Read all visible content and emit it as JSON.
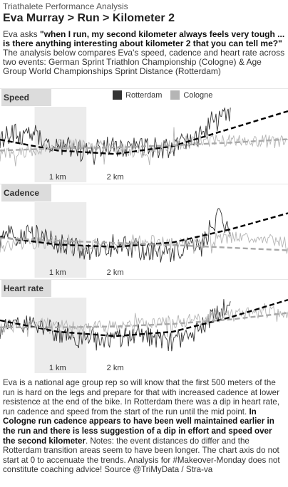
{
  "header": {
    "subtitle": "Triathalete Performance Analysis",
    "title": "Eva Murray > Run > Kilometer 2",
    "intro_lead": "Eva asks ",
    "intro_quote": "\"when I run, my second kilometer always feels very tough ... is there anything interesting about kilometer 2 that you can tell me?\"",
    "intro_rest": "The analysis below compares Eva's speed, cadence and heart rate across two events: German Sprint Triathlon Championship (Cologne) & Age Group World Championships Sprint Distance (Rotterdam)"
  },
  "legend": {
    "rotterdam": "Rotterdam",
    "cologne": "Cologne"
  },
  "colors": {
    "rotterdam": "#333333",
    "cologne": "#b5b5b5",
    "highlight": "#ececec",
    "label_bg": "#dcdcdc"
  },
  "chart_data": [
    {
      "type": "line",
      "title": "Speed",
      "x_unit": "km",
      "xlim": [
        0,
        5
      ],
      "x_ticks": [
        1,
        2
      ],
      "x_tick_labels": [
        "1 km",
        "2 km"
      ],
      "highlight_range": [
        0.6,
        1.5
      ],
      "series": [
        {
          "name": "Rotterdam",
          "x": [
            0.0,
            0.5,
            1.0,
            1.5,
            2.0,
            2.5,
            3.0,
            3.5,
            4.0
          ],
          "y": [
            0.7,
            0.8,
            0.55,
            0.4,
            0.5,
            0.5,
            0.45,
            0.8,
            1.25
          ]
        },
        {
          "name": "Cologne",
          "x": [
            0.0,
            0.5,
            1.0,
            1.5,
            2.0,
            2.5,
            3.0,
            3.5,
            4.0,
            4.5,
            5.0
          ],
          "y": [
            0.3,
            0.4,
            0.55,
            0.5,
            0.45,
            0.35,
            0.5,
            0.6,
            0.65,
            0.6,
            0.6
          ]
        }
      ],
      "trends": [
        {
          "name": "Rotterdam",
          "points": [
            [
              0.0,
              0.65
            ],
            [
              1.0,
              0.4
            ],
            [
              2.0,
              0.32
            ],
            [
              3.0,
              0.5
            ],
            [
              4.0,
              0.9
            ],
            [
              5.0,
              1.3
            ]
          ]
        },
        {
          "name": "Cologne",
          "points": [
            [
              0.0,
              0.4
            ],
            [
              1.0,
              0.45
            ],
            [
              2.0,
              0.47
            ],
            [
              3.0,
              0.52
            ],
            [
              4.0,
              0.58
            ],
            [
              5.0,
              0.66
            ]
          ]
        }
      ],
      "ylim": [
        0,
        1.4
      ]
    },
    {
      "type": "line",
      "title": "Cadence",
      "x_unit": "km",
      "xlim": [
        0,
        5
      ],
      "x_ticks": [
        1,
        2
      ],
      "x_tick_labels": [
        "1 km",
        "2 km"
      ],
      "highlight_range": [
        0.6,
        1.5
      ],
      "series": [
        {
          "name": "Rotterdam",
          "x": [
            0.0,
            0.5,
            1.0,
            1.5,
            2.0,
            2.5,
            3.0,
            3.5,
            3.8,
            4.0
          ],
          "y": [
            0.6,
            0.7,
            0.45,
            0.3,
            0.4,
            0.3,
            0.25,
            0.4,
            1.2,
            0.7
          ]
        },
        {
          "name": "Cologne",
          "x": [
            0.0,
            0.5,
            1.0,
            1.5,
            2.0,
            2.5,
            3.0,
            3.5,
            4.0,
            4.5,
            5.0
          ],
          "y": [
            0.4,
            0.45,
            0.5,
            0.4,
            0.45,
            0.55,
            0.45,
            0.5,
            0.6,
            0.55,
            0.5
          ]
        }
      ],
      "trends": [
        {
          "name": "Rotterdam",
          "points": [
            [
              0.0,
              0.6
            ],
            [
              1.0,
              0.43
            ],
            [
              2.0,
              0.38
            ],
            [
              3.0,
              0.48
            ],
            [
              4.0,
              0.78
            ],
            [
              5.0,
              1.15
            ]
          ]
        },
        {
          "name": "Cologne",
          "points": [
            [
              0.0,
              0.58
            ],
            [
              1.0,
              0.52
            ],
            [
              2.0,
              0.47
            ],
            [
              3.0,
              0.42
            ],
            [
              4.0,
              0.36
            ],
            [
              5.0,
              0.3
            ]
          ]
        }
      ],
      "ylim": [
        0,
        1.4
      ]
    },
    {
      "type": "line",
      "title": "Heart rate",
      "x_unit": "km",
      "xlim": [
        0,
        5
      ],
      "x_ticks": [
        1,
        2
      ],
      "x_tick_labels": [
        "1 km",
        "2 km"
      ],
      "highlight_range": [
        0.6,
        1.5
      ],
      "series": [
        {
          "name": "Rotterdam",
          "x": [
            0.0,
            0.5,
            1.0,
            1.5,
            2.0,
            2.5,
            3.0,
            3.5,
            3.8,
            4.0
          ],
          "y": [
            0.7,
            0.8,
            0.6,
            0.45,
            0.5,
            0.55,
            0.4,
            0.7,
            1.1,
            1.3
          ]
        },
        {
          "name": "Cologne",
          "x": [
            0.0,
            0.5,
            1.0,
            1.5,
            2.0,
            2.5,
            3.0,
            3.5,
            4.0,
            4.5,
            5.0
          ],
          "y": [
            0.7,
            0.8,
            0.75,
            0.7,
            0.75,
            0.8,
            0.85,
            0.9,
            1.0,
            1.05,
            1.05
          ]
        }
      ],
      "trends": [
        {
          "name": "Rotterdam",
          "points": [
            [
              0.0,
              0.88
            ],
            [
              1.0,
              0.62
            ],
            [
              2.0,
              0.52
            ],
            [
              3.0,
              0.62
            ],
            [
              4.0,
              0.95
            ],
            [
              5.0,
              1.35
            ]
          ]
        },
        {
          "name": "Cologne",
          "points": [
            [
              0.0,
              0.72
            ],
            [
              1.0,
              0.72
            ],
            [
              2.0,
              0.74
            ],
            [
              3.0,
              0.8
            ],
            [
              4.0,
              0.9
            ],
            [
              5.0,
              1.05
            ]
          ]
        }
      ],
      "ylim": [
        0,
        1.4
      ]
    }
  ],
  "footer": {
    "p1": "Eva is a national age group rep so will know that the first 500 meters of the run is hard on the legs and prepare for that with increased cadence at lower resistence at the end of the bike. In Rotterdam there was a dip in heart rate, run cadence and speed from the start of the run until the mid point. ",
    "p2": "In Cologne run cadence appears to have been well maintained earlier in the run and there is less suggestion of a dip in effort and speed over the second kilometer",
    "p3": ". Notes: the event distances do differ and the Rotterdam transition areas seem to have been longer. The chart axis do not start at 0 to accenuate the trends. Analysis for #Makeover-Monday does not constitute coaching advice! Source @TriMyData / Stra-va"
  }
}
